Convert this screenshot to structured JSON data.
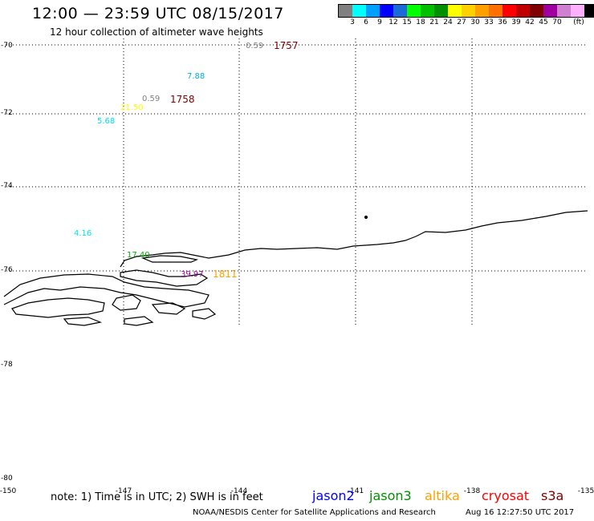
{
  "header": {
    "title": "12:00 — 23:59 UTC 08/15/2017",
    "subtitle": "12 hour collection of altimeter wave heights"
  },
  "legend": {
    "unit": "(ft)",
    "colors": [
      "#808080",
      "#00ffff",
      "#00a0ff",
      "#0000ff",
      "#1a6ad8",
      "#00ff00",
      "#00c000",
      "#009000",
      "#ffff00",
      "#ffd000",
      "#ffa000",
      "#ff7000",
      "#ff0000",
      "#c00000",
      "#800000",
      "#a000a0",
      "#d080d0",
      "#ffb0ff",
      "#000000"
    ],
    "labels": [
      "3",
      "6",
      "9",
      "12",
      "15",
      "18",
      "21",
      "24",
      "27",
      "30",
      "33",
      "36",
      "39",
      "42",
      "45",
      "70"
    ]
  },
  "map": {
    "lat_labels": [
      "-70",
      "-72",
      "-74",
      "-76",
      "-78",
      "-80"
    ],
    "lon_labels": [
      "-150",
      "-147",
      "-144",
      "-141",
      "-138",
      "-135"
    ],
    "wave_heights": [
      {
        "value": "0.59",
        "color": "#808080"
      },
      {
        "value": "7.88",
        "color": "#00b0e0"
      },
      {
        "value": "0.59",
        "color": "#808080"
      },
      {
        "value": "21.50",
        "color": "#ffff00"
      },
      {
        "value": "5.68",
        "color": "#00e0f0"
      },
      {
        "value": "4.16",
        "color": "#00e0f0"
      },
      {
        "value": "17.40",
        "color": "#00b000"
      },
      {
        "value": "39.97",
        "color": "#a000a0"
      }
    ],
    "times": [
      {
        "value": "1757",
        "color": "#800000"
      },
      {
        "value": "1758",
        "color": "#800000"
      },
      {
        "value": "1811",
        "color": "#ffa000"
      }
    ]
  },
  "footer": {
    "note": "note: 1) Time is in UTC; 2) SWH is in feet",
    "satellites": [
      {
        "name": "jason2",
        "color": "#0000ff"
      },
      {
        "name": "jason3",
        "color": "#009000"
      },
      {
        "name": "altika",
        "color": "#ffa000"
      },
      {
        "name": "cryosat",
        "color": "#ff0000"
      },
      {
        "name": "s3a",
        "color": "#800000"
      }
    ],
    "credit": "NOAA/NESDIS Center for Satellite Applications and Research",
    "timestamp": "Aug 16 12:27:50 UTC 2017"
  }
}
